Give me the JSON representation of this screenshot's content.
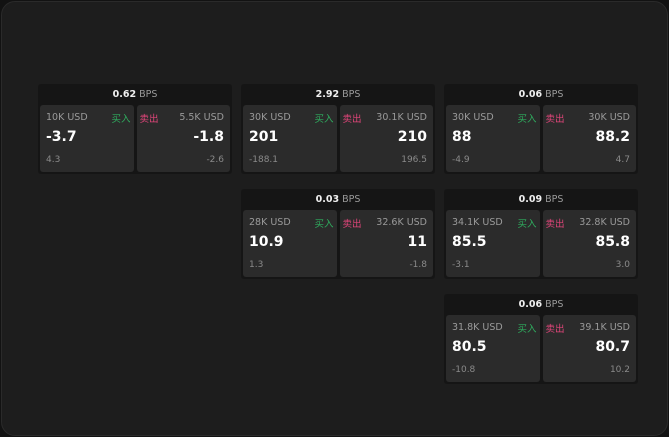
{
  "unit": "BPS",
  "buy_label": "买入",
  "sell_label": "卖出",
  "colors": {
    "buy": "#2fae5f",
    "sell": "#e0457a"
  },
  "cards": [
    {
      "spread": "0.62",
      "bid_size": "10K USD",
      "bid": "-3.7",
      "bid_change": "4.3",
      "ask_size": "5.5K USD",
      "ask": "-1.8",
      "ask_change": "-2.6"
    },
    {
      "spread": "2.92",
      "bid_size": "30K USD",
      "bid": "201",
      "bid_change": "-188.1",
      "ask_size": "30.1K USD",
      "ask": "210",
      "ask_change": "196.5"
    },
    {
      "spread": "0.06",
      "bid_size": "30K USD",
      "bid": "88",
      "bid_change": "-4.9",
      "ask_size": "30K USD",
      "ask": "88.2",
      "ask_change": "4.7"
    },
    {
      "spread": "0.03",
      "bid_size": "28K USD",
      "bid": "10.9",
      "bid_change": "1.3",
      "ask_size": "32.6K USD",
      "ask": "11",
      "ask_change": "-1.8"
    },
    {
      "spread": "0.09",
      "bid_size": "34.1K USD",
      "bid": "85.5",
      "bid_change": "-3.1",
      "ask_size": "32.8K USD",
      "ask": "85.8",
      "ask_change": "3.0"
    },
    {
      "spread": "0.06",
      "bid_size": "31.8K USD",
      "bid": "80.5",
      "bid_change": "-10.8",
      "ask_size": "39.1K USD",
      "ask": "80.7",
      "ask_change": "10.2"
    }
  ]
}
